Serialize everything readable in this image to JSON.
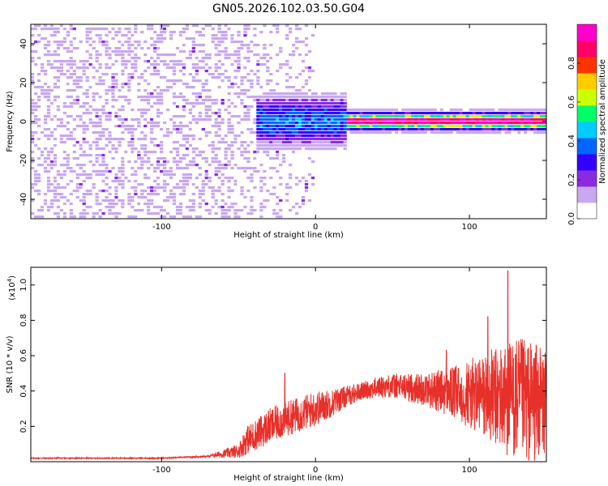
{
  "chart_data": [
    {
      "type": "heatmap",
      "title": "GN05.2026.102.03.50.G04",
      "xlabel": "Height of straight line (km)",
      "ylabel": "Frequency (Hz)",
      "xlim": [
        -185,
        150
      ],
      "ylim": [
        -50,
        50
      ],
      "x_ticks": [
        -100,
        0,
        100
      ],
      "y_ticks": [
        -40,
        -20,
        0,
        20,
        40
      ],
      "colorbar": {
        "label": "Normalized spectral amplitude",
        "range": [
          0,
          1
        ],
        "ticks": [
          "0.0",
          "0.2",
          "0.4",
          "0.6",
          "0.8"
        ],
        "colormap": [
          "#ffffff",
          "#c8a8f0",
          "#8a2be2",
          "#3300ff",
          "#0066ff",
          "#00ccff",
          "#00ff66",
          "#ccff00",
          "#ffcc00",
          "#ff3300",
          "#ff0066",
          "#ff00cc"
        ]
      },
      "description_regions": {
        "noise_until_km": 0,
        "signal_start_km": -38,
        "ridge_frequency_hz": 0
      }
    },
    {
      "type": "line",
      "xlabel": "Height of straight line (km)",
      "ylabel": "SNR (10 * v/v)",
      "y_scale_label": "(x10",
      "y_scale_exp": "4",
      "xlim": [
        -185,
        150
      ],
      "ylim": [
        0,
        1.1
      ],
      "x_ticks": [
        -100,
        0,
        100
      ],
      "y_ticks": [
        "0.2",
        "0.4",
        "0.6",
        "0.8",
        "1.0"
      ],
      "series": [
        {
          "color": "#e8302a",
          "x": [
            -185,
            -100,
            -70,
            -50,
            -45,
            -30,
            -20,
            -10,
            0,
            10,
            20,
            30,
            40,
            50,
            60,
            70,
            80,
            90,
            100,
            110,
            120,
            130,
            140,
            150
          ],
          "y": [
            0.02,
            0.02,
            0.03,
            0.06,
            0.12,
            0.2,
            0.24,
            0.27,
            0.3,
            0.33,
            0.37,
            0.4,
            0.42,
            0.43,
            0.42,
            0.41,
            0.4,
            0.39,
            0.38,
            0.37,
            0.36,
            0.35,
            0.34,
            0.33
          ],
          "spread": [
            0.003,
            0.003,
            0.005,
            0.04,
            0.08,
            0.1,
            0.1,
            0.1,
            0.1,
            0.08,
            0.06,
            0.05,
            0.06,
            0.07,
            0.08,
            0.09,
            0.12,
            0.15,
            0.2,
            0.25,
            0.3,
            0.35,
            0.35,
            0.3
          ],
          "peaks": [
            [
              -20,
              0.5
            ],
            [
              125,
              1.08
            ],
            [
              112,
              0.82
            ],
            [
              85,
              0.63
            ]
          ]
        }
      ]
    }
  ]
}
